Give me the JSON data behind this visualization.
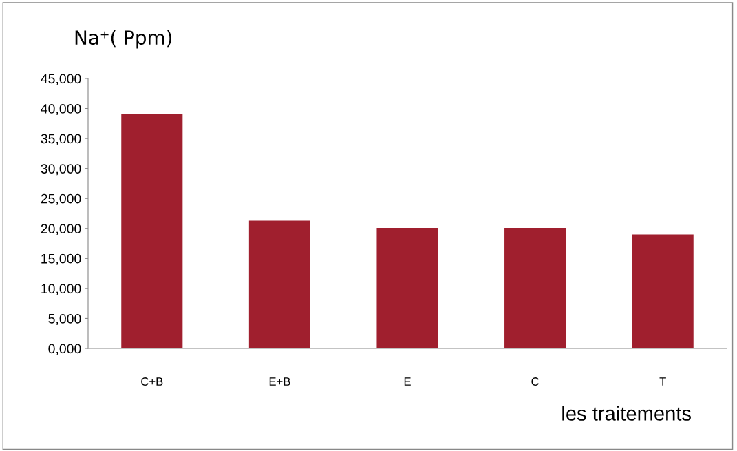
{
  "chart_data": {
    "type": "bar",
    "ylabel": "Na⁺( Ppm)",
    "xlabel": "les traitements",
    "categories": [
      "C+B",
      "E+B",
      "E",
      "C",
      "T"
    ],
    "values": [
      39100,
      21300,
      20100,
      20100,
      19000
    ],
    "color": "#a01f2e",
    "ylim": [
      0,
      45000
    ],
    "yticks": [
      {
        "value": 0,
        "label": "0,000"
      },
      {
        "value": 5000,
        "label": "5,000"
      },
      {
        "value": 10000,
        "label": "10,000"
      },
      {
        "value": 15000,
        "label": "15,000"
      },
      {
        "value": 20000,
        "label": "20,000"
      },
      {
        "value": 25000,
        "label": "25,000"
      },
      {
        "value": 30000,
        "label": "30,000"
      },
      {
        "value": 35000,
        "label": "35,000"
      },
      {
        "value": 40000,
        "label": "40,000"
      },
      {
        "value": 45000,
        "label": "45,000"
      }
    ],
    "grid": false,
    "legend": false
  }
}
